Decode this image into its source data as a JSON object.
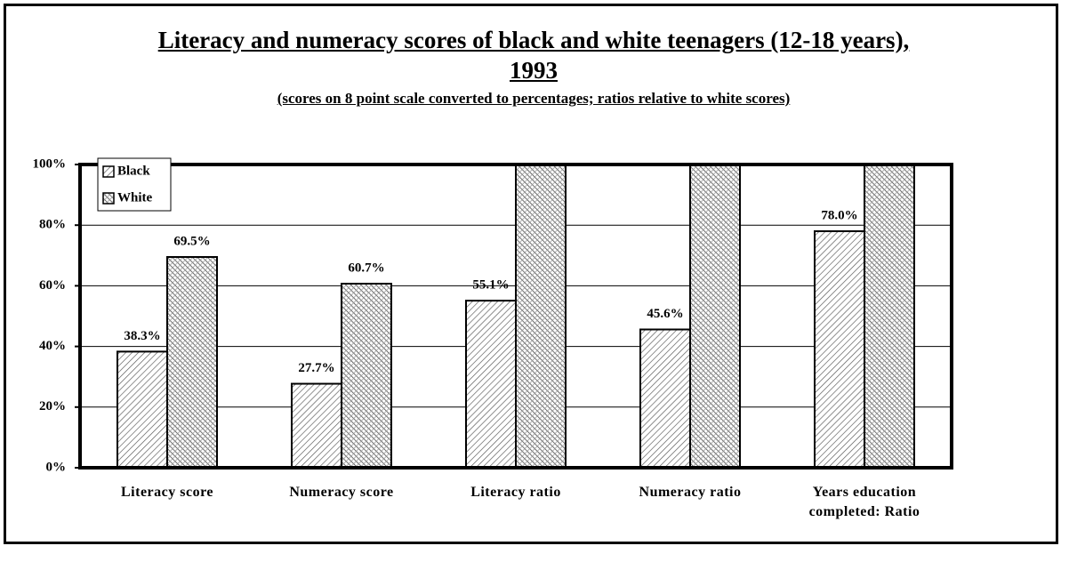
{
  "chart_data": {
    "type": "bar",
    "title": "Literacy and numeracy scores of black and white teenagers (12-18 years), 1993",
    "subtitle": "(scores on 8 point scale converted to percentages; ratios relative to white scores)",
    "categories": [
      "Literacy score",
      "Numeracy score",
      "Literacy ratio",
      "Numeracy ratio",
      "Years education completed: Ratio"
    ],
    "series": [
      {
        "name": "Black",
        "color": "#000000",
        "values": [
          38.3,
          27.7,
          55.1,
          45.6,
          78.0
        ],
        "value_labels": [
          "38.3%",
          "27.7%",
          "55.1%",
          "45.6%",
          "78.0%"
        ]
      },
      {
        "name": "White",
        "color": "#000000",
        "values": [
          69.5,
          60.7,
          100,
          100,
          100
        ],
        "value_labels": [
          "69.5%",
          "60.7%",
          null,
          null,
          null
        ]
      }
    ],
    "ylim": [
      0,
      100
    ],
    "yticks": [
      {
        "value": 0,
        "label": "0%"
      },
      {
        "value": 20,
        "label": "20%"
      },
      {
        "value": 40,
        "label": "40%"
      },
      {
        "value": 60,
        "label": "60%"
      },
      {
        "value": 80,
        "label": "80%"
      },
      {
        "value": 100,
        "label": "100%"
      }
    ],
    "grid": true,
    "legend": "top-left"
  }
}
